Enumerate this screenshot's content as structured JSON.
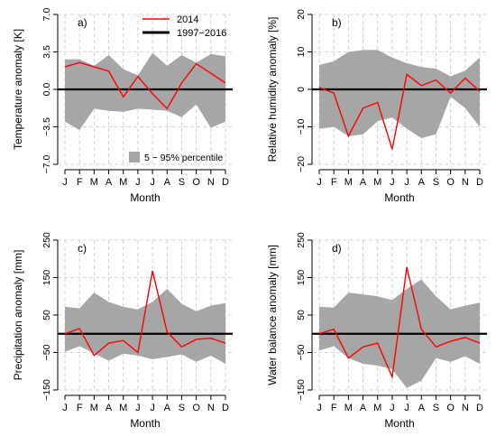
{
  "months": [
    "J",
    "F",
    "M",
    "A",
    "M",
    "J",
    "J",
    "A",
    "S",
    "O",
    "N",
    "D"
  ],
  "legend": {
    "line_2014": "2014",
    "line_mean": "1997−2016",
    "band": "5 − 95% percentile"
  },
  "colors": {
    "band": "#a6a6a6",
    "line_2014": "#ff0000",
    "mean": "#000000",
    "grid": "#c8c8c8"
  },
  "chart_data": [
    {
      "type": "line",
      "panel_label": "a)",
      "xlabel": "Month",
      "ylabel": "Temperature anomaly [K]",
      "ylim": [
        -7.0,
        7.0
      ],
      "yticks": [
        7.0,
        3.5,
        0.0,
        -3.5,
        -7.0
      ],
      "ytick_labels": [
        "7.0",
        "3.5",
        "0.0",
        "−3.5",
        "−7.0"
      ],
      "grid": true,
      "legend_position": "top-right",
      "series": [
        {
          "name": "2014",
          "values": [
            2.1,
            2.5,
            2.1,
            1.7,
            -0.7,
            1.2,
            -0.4,
            -1.8,
            0.6,
            2.4,
            1.5,
            0.6
          ]
        },
        {
          "name": "1997−2016",
          "values": [
            0,
            0,
            0,
            0,
            0,
            0,
            0,
            0,
            0,
            0,
            0,
            0
          ]
        }
      ],
      "band": {
        "name": "5 − 95% percentile",
        "upper": [
          2.8,
          2.8,
          2.2,
          3.2,
          1.9,
          1.3,
          3.4,
          2.2,
          3.2,
          2.5,
          3.3,
          3.1
        ],
        "lower": [
          -3.0,
          -3.8,
          -1.8,
          -2.0,
          -2.1,
          -1.8,
          -1.9,
          -2.0,
          -2.6,
          -1.4,
          -3.6,
          -3.0
        ]
      }
    },
    {
      "type": "line",
      "panel_label": "b)",
      "xlabel": "Month",
      "ylabel": "Relative humidity anomaly [%]",
      "ylim": [
        -20,
        20
      ],
      "yticks": [
        20,
        10,
        0,
        -10,
        -20
      ],
      "ytick_labels": [
        "20",
        "10",
        "0",
        "−10",
        "−20"
      ],
      "grid": true,
      "series": [
        {
          "name": "2014",
          "values": [
            0.5,
            -1,
            -12.5,
            -5,
            -3.5,
            -16,
            4,
            1,
            2.5,
            -1,
            3,
            -0.5
          ]
        },
        {
          "name": "1997−2016",
          "values": [
            0,
            0,
            0,
            0,
            0,
            0,
            0,
            0,
            0,
            0,
            0,
            0
          ]
        }
      ],
      "band": {
        "name": "5 − 95% percentile",
        "upper": [
          6.5,
          7.5,
          10,
          10.5,
          10.5,
          8.5,
          7,
          6,
          5.5,
          3.5,
          5,
          8.5
        ],
        "lower": [
          -10.5,
          -10,
          -12.5,
          -12,
          -8.5,
          -7.5,
          -10.5,
          -13,
          -12,
          -2,
          -5,
          -10
        ]
      }
    },
    {
      "type": "line",
      "panel_label": "c)",
      "xlabel": "Month",
      "ylabel": "Precipitation anomaly [mm]",
      "ylim": [
        -150,
        250
      ],
      "yticks": [
        250,
        150,
        50,
        -50,
        -150
      ],
      "ytick_labels": [
        "250",
        "150",
        "50",
        "−50",
        "−150"
      ],
      "grid": true,
      "series": [
        {
          "name": "2014",
          "values": [
            0,
            14,
            -58,
            -25,
            -18,
            -50,
            168,
            5,
            -35,
            -15,
            -12,
            -25
          ]
        },
        {
          "name": "1997−2016",
          "values": [
            0,
            0,
            0,
            0,
            0,
            0,
            0,
            0,
            0,
            0,
            0,
            0
          ]
        }
      ],
      "band": {
        "name": "5 − 95% percentile",
        "upper": [
          72,
          68,
          110,
          85,
          72,
          65,
          85,
          120,
          80,
          60,
          75,
          82
        ],
        "lower": [
          -48,
          -33,
          -52,
          -72,
          -53,
          -58,
          -68,
          -62,
          -55,
          -75,
          -58,
          -80
        ]
      }
    },
    {
      "type": "line",
      "panel_label": "d)",
      "xlabel": "Month",
      "ylabel": "Water balance anomaly [mm]",
      "ylim": [
        -150,
        250
      ],
      "yticks": [
        250,
        150,
        50,
        -50,
        -150
      ],
      "ytick_labels": [
        "250",
        "150",
        "50",
        "−50",
        "−150"
      ],
      "grid": true,
      "series": [
        {
          "name": "2014",
          "values": [
            0,
            12,
            -65,
            -35,
            -25,
            -115,
            178,
            12,
            -35,
            -20,
            -10,
            -25
          ]
        },
        {
          "name": "1997−2016",
          "values": [
            0,
            0,
            0,
            0,
            0,
            0,
            0,
            0,
            0,
            0,
            0,
            0
          ]
        }
      ],
      "band": {
        "name": "5 − 95% percentile",
        "upper": [
          72,
          70,
          110,
          105,
          100,
          90,
          120,
          145,
          100,
          65,
          75,
          83
        ],
        "lower": [
          -45,
          -33,
          -65,
          -80,
          -85,
          -95,
          -145,
          -125,
          -65,
          -75,
          -60,
          -80
        ]
      }
    }
  ]
}
